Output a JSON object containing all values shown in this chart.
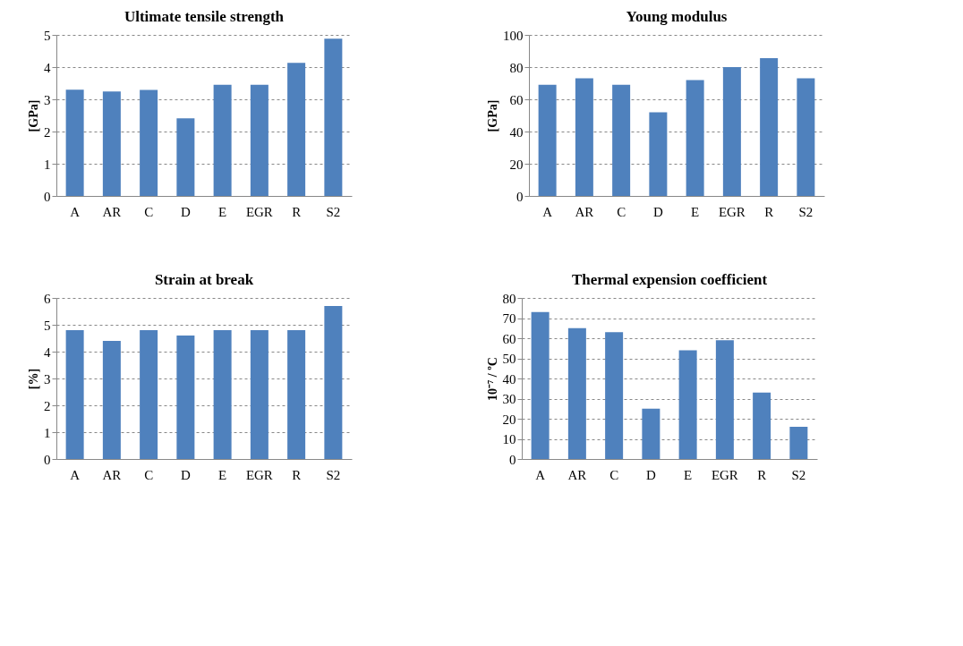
{
  "chart_data": [
    {
      "type": "bar",
      "title": "Ultimate tensile strength",
      "ylabel": "[GPa]",
      "categories": [
        "A",
        "AR",
        "C",
        "D",
        "E",
        "EGR",
        "R",
        "S2"
      ],
      "values": [
        3.3,
        3.24,
        3.29,
        2.41,
        3.45,
        3.45,
        4.13,
        4.88
      ],
      "color": "#4f81bd",
      "ylim": [
        0,
        5
      ],
      "yticks": [
        0,
        1,
        2,
        3,
        4,
        5
      ],
      "grid": "y"
    },
    {
      "type": "bar",
      "title": "Young modulus",
      "ylabel": "[GPa]",
      "categories": [
        "A",
        "AR",
        "C",
        "D",
        "E",
        "EGR",
        "R",
        "S2"
      ],
      "values": [
        69,
        73,
        69,
        52,
        72,
        80,
        85.5,
        73
      ],
      "color": "#4f81bd",
      "ylim": [
        0,
        100
      ],
      "yticks": [
        0,
        20,
        40,
        60,
        80,
        100
      ],
      "grid": "y"
    },
    {
      "type": "bar",
      "title": "Strain at break",
      "ylabel": "[%]",
      "categories": [
        "A",
        "AR",
        "C",
        "D",
        "E",
        "EGR",
        "R",
        "S2"
      ],
      "values": [
        4.8,
        4.4,
        4.8,
        4.6,
        4.8,
        4.8,
        4.8,
        5.7
      ],
      "color": "#4f81bd",
      "ylim": [
        0,
        6
      ],
      "yticks": [
        0,
        1,
        2,
        3,
        4,
        5,
        6
      ],
      "grid": "y"
    },
    {
      "type": "bar",
      "title": "Thermal expension coefficient",
      "ylabel": "10⁻⁷ / ºC",
      "categories": [
        "A",
        "AR",
        "C",
        "D",
        "E",
        "EGR",
        "R",
        "S2"
      ],
      "values": [
        73,
        65,
        63,
        25,
        54,
        59,
        33,
        16
      ],
      "color": "#4f81bd",
      "ylim": [
        0,
        80
      ],
      "yticks": [
        0,
        10,
        20,
        30,
        40,
        50,
        60,
        70,
        80
      ],
      "grid": "y"
    }
  ]
}
